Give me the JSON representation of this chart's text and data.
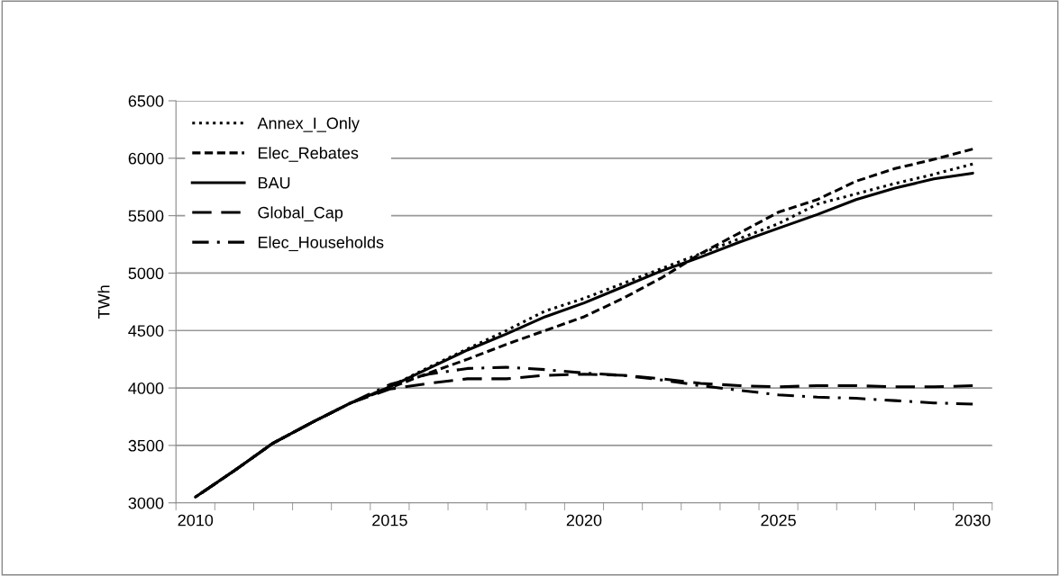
{
  "chart_data": {
    "type": "line",
    "ylabel": "TWh",
    "categories": [
      "2010",
      null,
      null,
      null,
      null,
      "2015",
      null,
      null,
      null,
      null,
      "2020",
      null,
      null,
      null,
      null,
      "2025",
      null,
      null,
      null,
      null,
      "2030"
    ],
    "series": [
      {
        "name": "Annex_I_Only",
        "color": "#000000",
        "line_style": "dotted",
        "values": [
          3050,
          3280,
          3520,
          3700,
          3870,
          4010,
          4180,
          4340,
          4500,
          4670,
          4780,
          4910,
          5040,
          5170,
          5300,
          5430,
          5600,
          5690,
          5780,
          5860,
          5950
        ]
      },
      {
        "name": "Elec_Rebates",
        "color": "#000000",
        "line_style": "dashed",
        "values": [
          3050,
          3280,
          3520,
          3700,
          3870,
          4000,
          4130,
          4250,
          4380,
          4500,
          4620,
          4780,
          4960,
          5170,
          5350,
          5530,
          5640,
          5800,
          5910,
          5990,
          6080
        ]
      },
      {
        "name": "BAU",
        "color": "#000000",
        "line_style": "solid",
        "values": [
          3050,
          3280,
          3520,
          3700,
          3870,
          4010,
          4170,
          4330,
          4470,
          4620,
          4740,
          4880,
          5020,
          5140,
          5270,
          5390,
          5510,
          5640,
          5740,
          5820,
          5870
        ]
      },
      {
        "name": "Global_Cap",
        "color": "#000000",
        "line_style": "long_dashed",
        "values": [
          3050,
          3280,
          3520,
          3700,
          3870,
          3990,
          4040,
          4080,
          4080,
          4110,
          4120,
          4110,
          4080,
          4040,
          4020,
          4010,
          4020,
          4020,
          4010,
          4010,
          4020
        ]
      },
      {
        "name": "Elec_Households",
        "color": "#000000",
        "line_style": "dash_dot",
        "values": [
          3050,
          3280,
          3520,
          3700,
          3870,
          4030,
          4120,
          4170,
          4180,
          4160,
          4130,
          4110,
          4070,
          4020,
          3980,
          3940,
          3920,
          3910,
          3890,
          3870,
          3860
        ]
      }
    ],
    "ylim": [
      3000,
      6500
    ],
    "yticks": [
      3000,
      3500,
      4000,
      4500,
      5000,
      5500,
      6000,
      6500
    ],
    "grid": "y",
    "legend": "top left",
    "marker": "none"
  }
}
